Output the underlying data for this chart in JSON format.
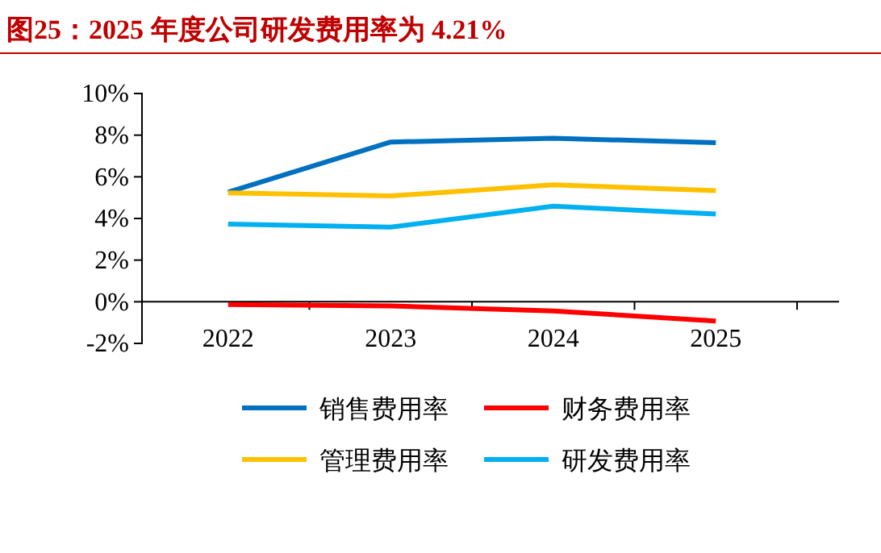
{
  "chart_data": {
    "type": "line",
    "title": "图25：2025 年度公司研发费用率为 4.21%",
    "categories": [
      "2022",
      "2023",
      "2024",
      "2025"
    ],
    "series": [
      {
        "name": "销售费用率",
        "color": "#0070c0",
        "values": [
          5.26,
          7.67,
          7.85,
          7.64
        ]
      },
      {
        "name": "财务费用率",
        "color": "#ff0000",
        "values": [
          -0.13,
          -0.2,
          -0.44,
          -0.93
        ]
      },
      {
        "name": "管理费用率",
        "color": "#ffc000",
        "values": [
          5.23,
          5.08,
          5.62,
          5.34
        ]
      },
      {
        "name": "研发费用率",
        "color": "#00b0f0",
        "values": [
          3.73,
          3.58,
          4.59,
          4.21
        ]
      }
    ],
    "ylim": [
      -2,
      10
    ],
    "yticks": [
      {
        "value": -2,
        "label": "-2%"
      },
      {
        "value": 0,
        "label": "0%"
      },
      {
        "value": 2,
        "label": "2%"
      },
      {
        "value": 4,
        "label": "4%"
      },
      {
        "value": 6,
        "label": "6%"
      },
      {
        "value": 8,
        "label": "8%"
      },
      {
        "value": 10,
        "label": "10%"
      }
    ],
    "grid": false,
    "legend": "bottom",
    "marker": "none",
    "line_style": "solid"
  }
}
